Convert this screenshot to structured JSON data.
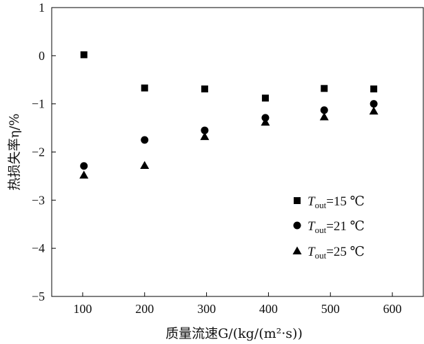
{
  "chart_data": {
    "type": "scatter",
    "title": "",
    "xlabel": "质量流速G/(kg/(m²·s))",
    "ylabel": "热损失率η/%",
    "xlim": [
      50,
      650
    ],
    "ylim": [
      -5,
      1
    ],
    "xticks": [
      100,
      200,
      300,
      400,
      500,
      600
    ],
    "yticks": [
      1,
      0,
      -1,
      -2,
      -3,
      -4,
      -5
    ],
    "grid": false,
    "legend_position": "lower-right",
    "series": [
      {
        "name": "T_out=15 ℃",
        "legend_label": {
          "symbol": "T",
          "sub": "out",
          "rest": "=15 ℃"
        },
        "marker": "square",
        "x": [
          102,
          200,
          297,
          395,
          490,
          570
        ],
        "y": [
          0.02,
          -0.67,
          -0.69,
          -0.88,
          -0.68,
          -0.69
        ]
      },
      {
        "name": "T_out=21 ℃",
        "legend_label": {
          "symbol": "T",
          "sub": "out",
          "rest": "=21 ℃"
        },
        "marker": "circle",
        "x": [
          102,
          200,
          297,
          395,
          490,
          570
        ],
        "y": [
          -2.29,
          -1.75,
          -1.55,
          -1.29,
          -1.13,
          -1.0
        ]
      },
      {
        "name": "T_out=25 ℃",
        "legend_label": {
          "symbol": "T",
          "sub": "out",
          "rest": "=25 ℃"
        },
        "marker": "triangle",
        "x": [
          102,
          200,
          297,
          395,
          490,
          570
        ],
        "y": [
          -2.48,
          -2.28,
          -1.68,
          -1.38,
          -1.27,
          -1.15
        ]
      }
    ],
    "color": "#000000"
  }
}
